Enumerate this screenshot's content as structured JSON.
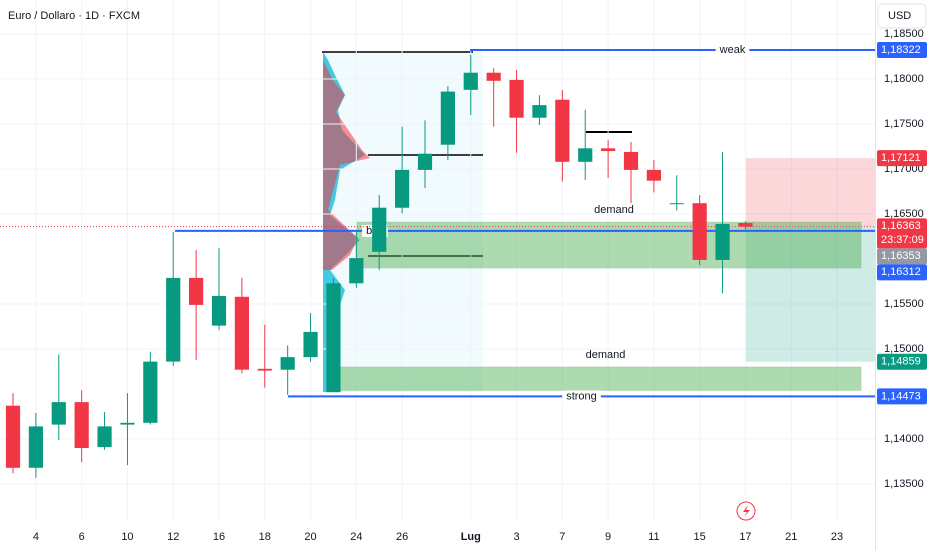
{
  "chart_data": {
    "type": "candlestick",
    "title": "Euro / Dollaro · 1D · FXCM",
    "currency": "USD",
    "up_color": "#089981",
    "down_color": "#f23645",
    "categories": [
      null,
      "4",
      null,
      "6",
      null,
      "10",
      null,
      "12",
      null,
      "16",
      null,
      "18",
      null,
      "20",
      null,
      "24",
      null,
      "26",
      null,
      null,
      "Lug",
      null,
      "3",
      null,
      "7",
      null,
      "9",
      null,
      "11",
      null,
      "15",
      null,
      "17",
      null,
      "21",
      null,
      "23"
    ],
    "open": [
      1.1437,
      1.1368,
      1.1416,
      1.1441,
      1.1391,
      1.1416,
      1.1418,
      1.1486,
      1.1579,
      1.1526,
      1.1558,
      1.1478,
      1.1477,
      1.1491,
      1.1452,
      1.1573,
      1.1608,
      1.1657,
      1.1699,
      1.1727,
      1.1788,
      1.1807,
      1.1799,
      1.1757,
      1.1777,
      1.1708,
      1.1723,
      1.1719,
      1.1699,
      1.1662,
      1.1662,
      1.1599,
      1.164,
      null,
      null,
      null,
      null
    ],
    "high": [
      1.1451,
      1.1429,
      1.1494,
      1.1454,
      1.143,
      1.1451,
      1.1497,
      1.163,
      1.161,
      1.1612,
      1.1579,
      1.1527,
      1.1504,
      1.154,
      1.1579,
      1.1632,
      1.1671,
      1.1747,
      1.1754,
      1.1792,
      1.1827,
      1.1812,
      1.181,
      1.1782,
      1.1788,
      1.1766,
      1.1732,
      1.173,
      1.171,
      1.1693,
      1.1671,
      1.1719,
      1.1642,
      null,
      null,
      null,
      null
    ],
    "low": [
      1.1362,
      1.1357,
      1.1399,
      1.1374,
      1.1388,
      1.1371,
      1.1416,
      1.1481,
      1.1488,
      1.1521,
      1.1473,
      1.1457,
      1.1449,
      1.1486,
      1.1452,
      1.1568,
      1.1588,
      1.1651,
      1.1679,
      1.171,
      1.176,
      1.1747,
      1.1718,
      1.1749,
      1.1686,
      1.1688,
      1.169,
      1.1662,
      1.1674,
      1.1654,
      1.1593,
      1.1562,
      1.1633,
      null,
      null,
      null,
      null
    ],
    "close": [
      1.1368,
      1.1414,
      1.1441,
      1.139,
      1.1414,
      1.1418,
      1.1486,
      1.1579,
      1.1549,
      1.1559,
      1.1477,
      1.1476,
      1.1491,
      1.1519,
      1.1573,
      1.1601,
      1.1657,
      1.1699,
      1.1717,
      1.1786,
      1.1807,
      1.1798,
      1.1757,
      1.1771,
      1.1708,
      1.1723,
      1.172,
      1.1699,
      1.1687,
      1.1662,
      1.1599,
      1.1639,
      1.1636,
      null,
      null,
      null,
      null
    ],
    "ylim": [
      1.131,
      1.18878
    ],
    "yticks": [
      {
        "value": 1.185,
        "label": "1,18500"
      },
      {
        "value": 1.18,
        "label": "1,18000"
      },
      {
        "value": 1.175,
        "label": "1,17500"
      },
      {
        "value": 1.17,
        "label": "1,17000"
      },
      {
        "value": 1.165,
        "label": "1,16500"
      },
      {
        "value": 1.155,
        "label": "1,15500"
      },
      {
        "value": 1.15,
        "label": "1,15000"
      },
      {
        "value": 1.14,
        "label": "1,14000"
      },
      {
        "value": 1.135,
        "label": "1,13500"
      }
    ],
    "levels": [
      {
        "name": "weak",
        "value": 1.18322,
        "color": "#2962ff",
        "text_color": "#089981"
      },
      {
        "name": "bos",
        "value": 1.16312,
        "color": "#2962ff",
        "text_color": "#089981"
      },
      {
        "name": "strong",
        "value": 1.14473,
        "color": "#2962ff",
        "text_color": "#089981"
      }
    ],
    "zones": [
      {
        "name": "demand",
        "top": 1.1641,
        "bottom": 1.159
      },
      {
        "name": "demand",
        "top": 1.148,
        "bottom": 1.1454
      }
    ],
    "position": {
      "stop": 1.17121,
      "entry": 1.16363,
      "target": 1.14859
    },
    "price_labels": [
      {
        "value": 1.18322,
        "label": "1,18322",
        "color": "#2962ff"
      },
      {
        "value": 1.17121,
        "label": "1,17121",
        "color": "#f23645"
      },
      {
        "value": 1.16363,
        "label": "1,16363",
        "color": "#f23645",
        "sub": "23:37:09"
      },
      {
        "value": 1.16353,
        "label": "1,16353",
        "color": "#9598a1"
      },
      {
        "value": 1.16312,
        "label": "1,16312",
        "color": "#2962ff"
      },
      {
        "value": 1.14859,
        "label": "1,14859",
        "color": "#089981"
      },
      {
        "value": 1.14473,
        "label": "1,14473",
        "color": "#2962ff"
      }
    ]
  }
}
